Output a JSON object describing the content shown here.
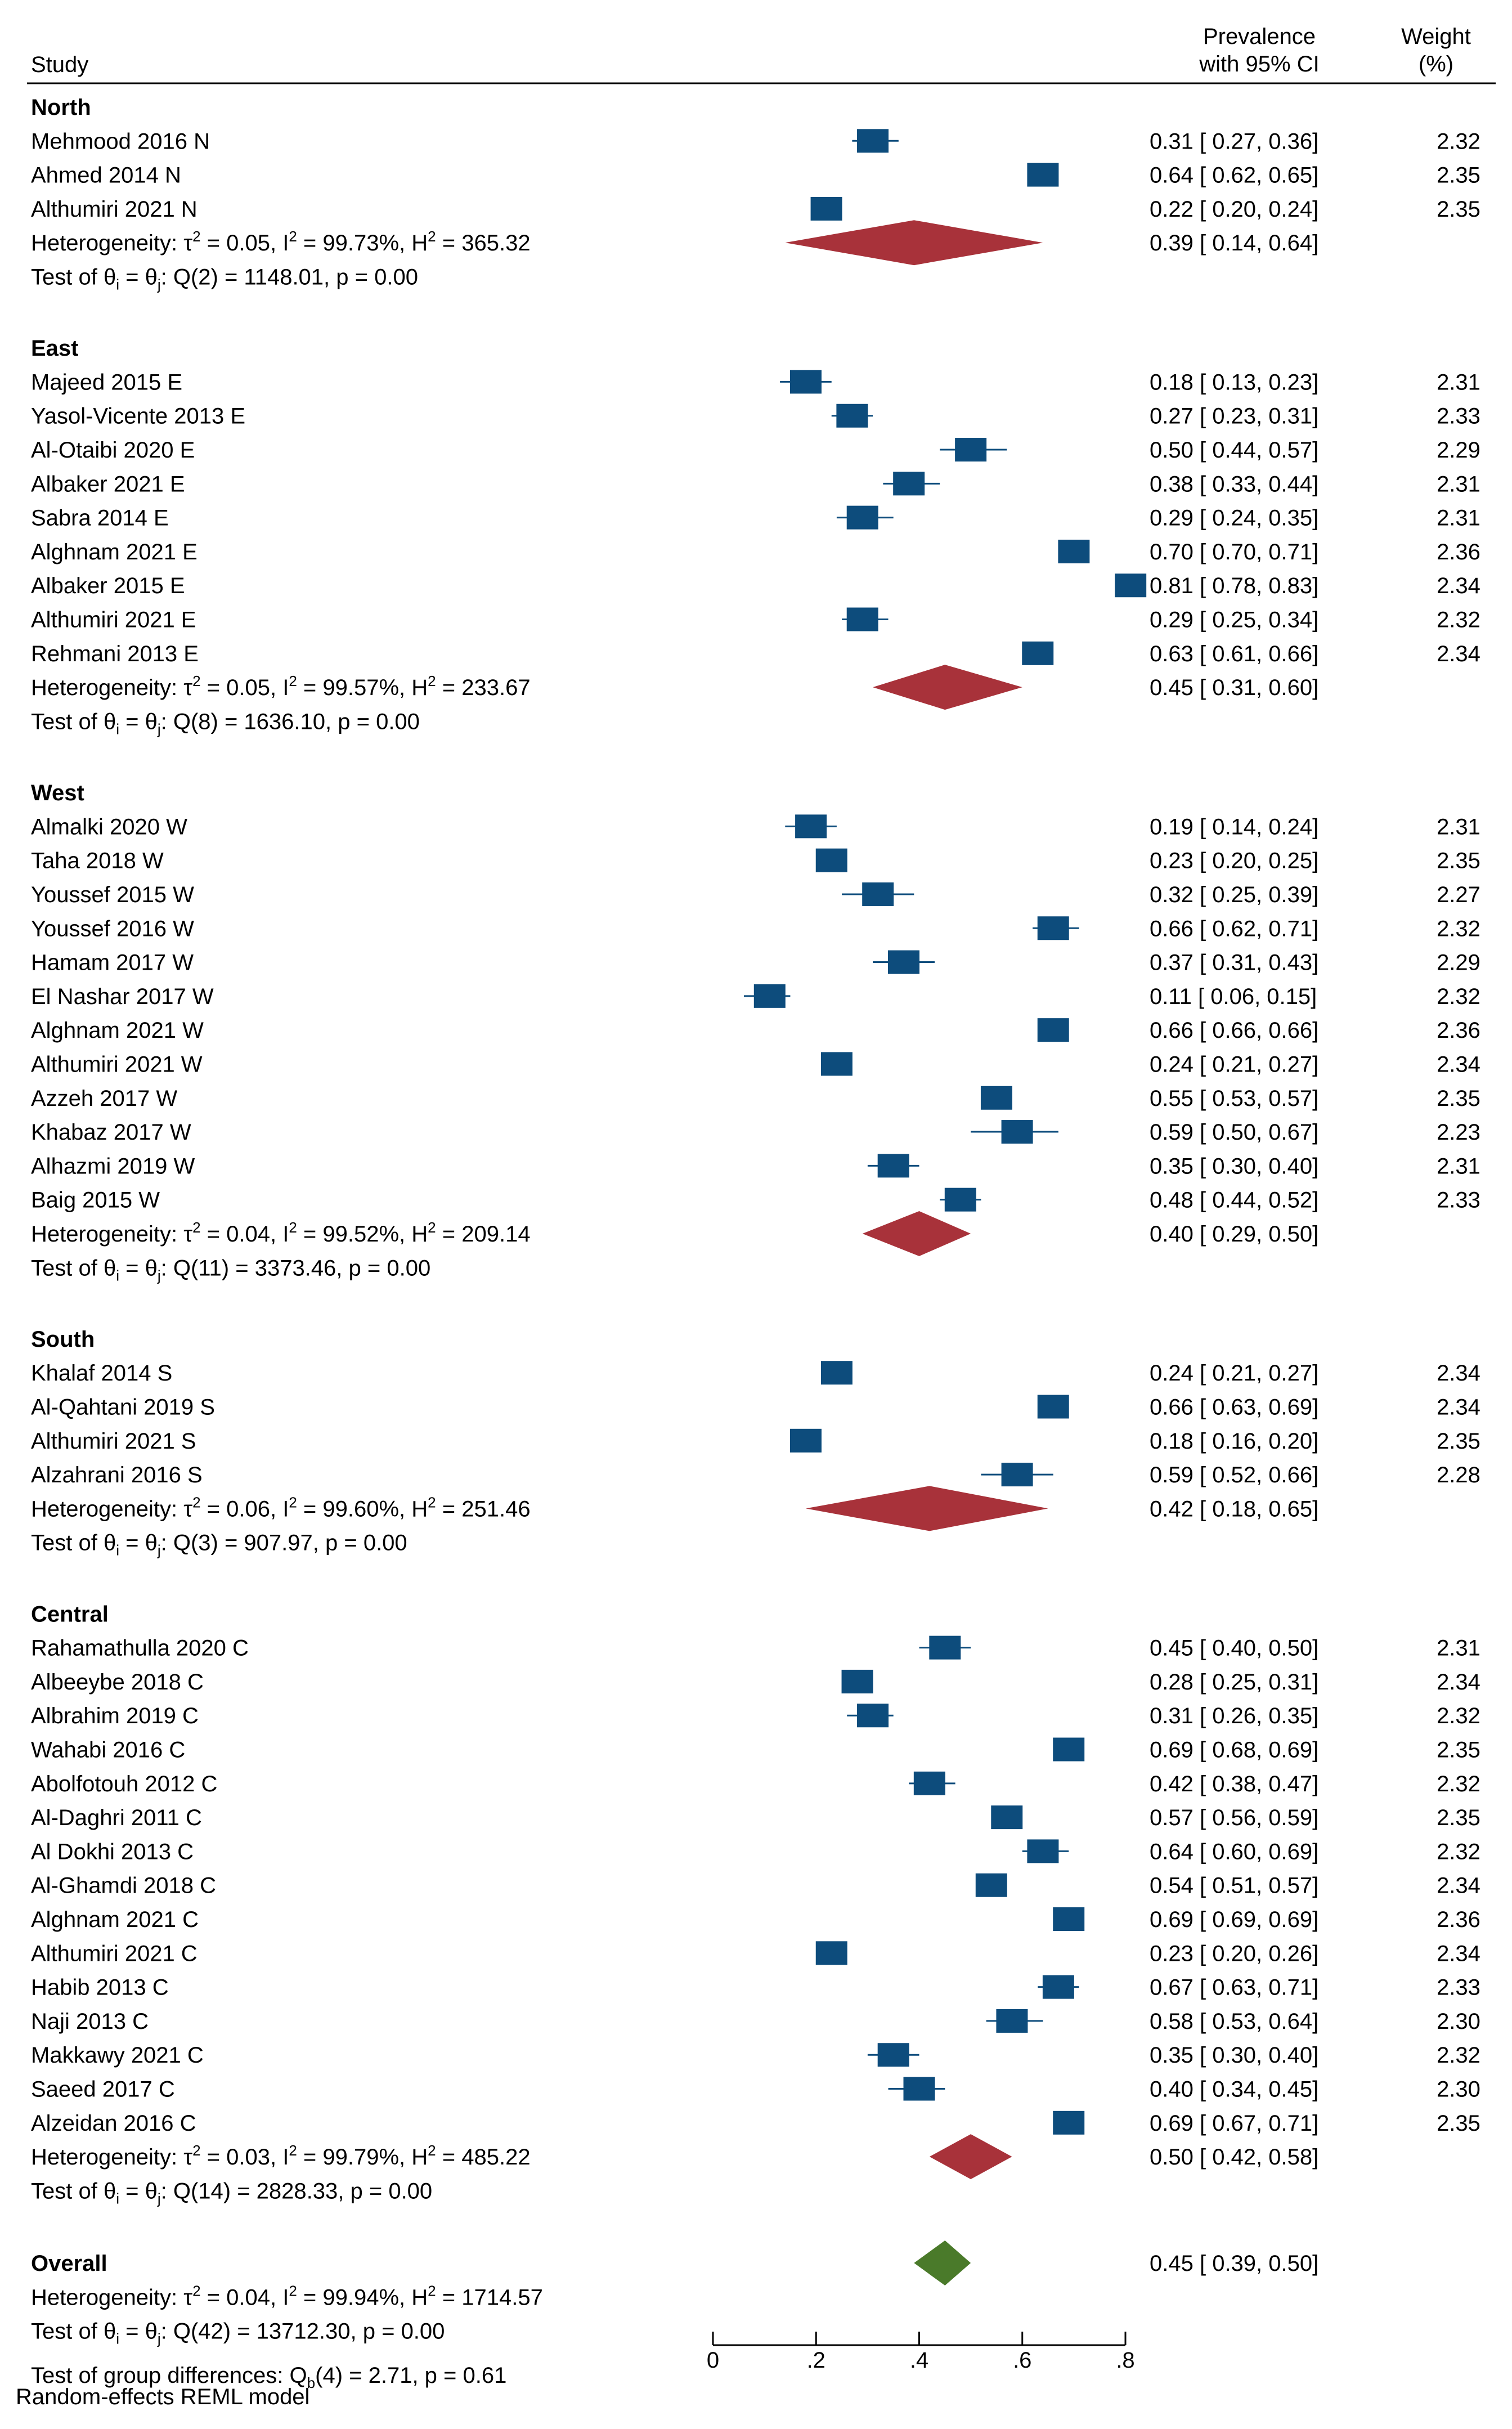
{
  "chart_data": {
    "type": "forest",
    "header": {
      "study": "Study",
      "prevalence_line1": "Prevalence",
      "prevalence_line2": "with 95% CI",
      "weight_line1": "Weight",
      "weight_line2": "(%)"
    },
    "xaxis": {
      "range": [
        0,
        0.8
      ],
      "ticks": [
        0,
        0.2,
        0.4,
        0.6,
        0.8
      ],
      "tick_labels": [
        "0",
        ".2",
        ".4",
        ".6",
        ".8"
      ]
    },
    "colors": {
      "study_box": "#0d4c7c",
      "subgroup_diamond": "#a8323a",
      "overall_diamond": "#4a7a2a"
    },
    "groups": [
      {
        "name": "North",
        "studies": [
          {
            "label": "Mehmood 2016 N",
            "est": 0.31,
            "lo": 0.27,
            "hi": 0.36,
            "ci_text": "0.31 [ 0.27,  0.36]",
            "weight": "2.32"
          },
          {
            "label": "Ahmed 2014 N",
            "est": 0.64,
            "lo": 0.62,
            "hi": 0.65,
            "ci_text": "0.64 [ 0.62,  0.65]",
            "weight": "2.35"
          },
          {
            "label": "Althumiri 2021 N",
            "est": 0.22,
            "lo": 0.2,
            "hi": 0.24,
            "ci_text": "0.22 [ 0.20,  0.24]",
            "weight": "2.35"
          }
        ],
        "pooled": {
          "est": 0.39,
          "lo": 0.14,
          "hi": 0.64,
          "ci_text": "0.39 [ 0.14,  0.64]"
        },
        "heterogeneity": {
          "tau2": "0.05",
          "i2": "99.73%",
          "h2": "365.32"
        },
        "test": {
          "q_df": "2",
          "q": "1148.01",
          "p": "0.00"
        }
      },
      {
        "name": "East",
        "studies": [
          {
            "label": "Majeed 2015 E",
            "est": 0.18,
            "lo": 0.13,
            "hi": 0.23,
            "ci_text": "0.18 [ 0.13,  0.23]",
            "weight": "2.31"
          },
          {
            "label": "Yasol-Vicente 2013 E",
            "est": 0.27,
            "lo": 0.23,
            "hi": 0.31,
            "ci_text": "0.27 [ 0.23,  0.31]",
            "weight": "2.33"
          },
          {
            "label": "Al-Otaibi 2020 E",
            "est": 0.5,
            "lo": 0.44,
            "hi": 0.57,
            "ci_text": "0.50 [ 0.44,  0.57]",
            "weight": "2.29"
          },
          {
            "label": "Albaker 2021 E",
            "est": 0.38,
            "lo": 0.33,
            "hi": 0.44,
            "ci_text": "0.38 [ 0.33,  0.44]",
            "weight": "2.31"
          },
          {
            "label": "Sabra 2014 E",
            "est": 0.29,
            "lo": 0.24,
            "hi": 0.35,
            "ci_text": "0.29 [ 0.24,  0.35]",
            "weight": "2.31"
          },
          {
            "label": "Alghnam 2021 E",
            "est": 0.7,
            "lo": 0.7,
            "hi": 0.71,
            "ci_text": "0.70 [ 0.70,  0.71]",
            "weight": "2.36"
          },
          {
            "label": "Albaker 2015 E",
            "est": 0.81,
            "lo": 0.78,
            "hi": 0.83,
            "ci_text": "0.81 [ 0.78,  0.83]",
            "weight": "2.34"
          },
          {
            "label": "Althumiri 2021 E",
            "est": 0.29,
            "lo": 0.25,
            "hi": 0.34,
            "ci_text": "0.29 [ 0.25,  0.34]",
            "weight": "2.32"
          },
          {
            "label": "Rehmani 2013 E",
            "est": 0.63,
            "lo": 0.61,
            "hi": 0.66,
            "ci_text": "0.63 [ 0.61,  0.66]",
            "weight": "2.34"
          }
        ],
        "pooled": {
          "est": 0.45,
          "lo": 0.31,
          "hi": 0.6,
          "ci_text": "0.45 [ 0.31,  0.60]"
        },
        "heterogeneity": {
          "tau2": "0.05",
          "i2": "99.57%",
          "h2": "233.67"
        },
        "test": {
          "q_df": "8",
          "q": "1636.10",
          "p": "0.00"
        }
      },
      {
        "name": "West",
        "studies": [
          {
            "label": "Almalki 2020 W",
            "est": 0.19,
            "lo": 0.14,
            "hi": 0.24,
            "ci_text": "0.19 [ 0.14,  0.24]",
            "weight": "2.31"
          },
          {
            "label": "Taha 2018 W",
            "est": 0.23,
            "lo": 0.2,
            "hi": 0.25,
            "ci_text": "0.23 [ 0.20,  0.25]",
            "weight": "2.35"
          },
          {
            "label": "Youssef 2015 W",
            "est": 0.32,
            "lo": 0.25,
            "hi": 0.39,
            "ci_text": "0.32 [ 0.25,  0.39]",
            "weight": "2.27"
          },
          {
            "label": "Youssef 2016 W",
            "est": 0.66,
            "lo": 0.62,
            "hi": 0.71,
            "ci_text": "0.66 [ 0.62,  0.71]",
            "weight": "2.32"
          },
          {
            "label": "Hamam 2017 W",
            "est": 0.37,
            "lo": 0.31,
            "hi": 0.43,
            "ci_text": "0.37 [ 0.31,  0.43]",
            "weight": "2.29"
          },
          {
            "label": "El Nashar 2017 W",
            "est": 0.11,
            "lo": 0.06,
            "hi": 0.15,
            "ci_text": "0.11 [ 0.06,  0.15]",
            "weight": "2.32"
          },
          {
            "label": "Alghnam 2021 W",
            "est": 0.66,
            "lo": 0.66,
            "hi": 0.66,
            "ci_text": "0.66 [ 0.66,  0.66]",
            "weight": "2.36"
          },
          {
            "label": "Althumiri 2021 W",
            "est": 0.24,
            "lo": 0.21,
            "hi": 0.27,
            "ci_text": "0.24 [ 0.21,  0.27]",
            "weight": "2.34"
          },
          {
            "label": "Azzeh 2017 W",
            "est": 0.55,
            "lo": 0.53,
            "hi": 0.57,
            "ci_text": "0.55 [ 0.53,  0.57]",
            "weight": "2.35"
          },
          {
            "label": "Khabaz 2017 W",
            "est": 0.59,
            "lo": 0.5,
            "hi": 0.67,
            "ci_text": "0.59 [ 0.50,  0.67]",
            "weight": "2.23"
          },
          {
            "label": "Alhazmi 2019 W",
            "est": 0.35,
            "lo": 0.3,
            "hi": 0.4,
            "ci_text": "0.35 [ 0.30,  0.40]",
            "weight": "2.31"
          },
          {
            "label": "Baig 2015 W",
            "est": 0.48,
            "lo": 0.44,
            "hi": 0.52,
            "ci_text": "0.48 [ 0.44,  0.52]",
            "weight": "2.33"
          }
        ],
        "pooled": {
          "est": 0.4,
          "lo": 0.29,
          "hi": 0.5,
          "ci_text": "0.40 [ 0.29,  0.50]"
        },
        "heterogeneity": {
          "tau2": "0.04",
          "i2": "99.52%",
          "h2": "209.14"
        },
        "test": {
          "q_df": "11",
          "q": "3373.46",
          "p": "0.00"
        }
      },
      {
        "name": "South",
        "studies": [
          {
            "label": "Khalaf 2014 S",
            "est": 0.24,
            "lo": 0.21,
            "hi": 0.27,
            "ci_text": "0.24 [ 0.21,  0.27]",
            "weight": "2.34"
          },
          {
            "label": "Al-Qahtani 2019 S",
            "est": 0.66,
            "lo": 0.63,
            "hi": 0.69,
            "ci_text": "0.66 [ 0.63,  0.69]",
            "weight": "2.34"
          },
          {
            "label": "Althumiri 2021 S",
            "est": 0.18,
            "lo": 0.16,
            "hi": 0.2,
            "ci_text": "0.18 [ 0.16,  0.20]",
            "weight": "2.35"
          },
          {
            "label": "Alzahrani 2016 S",
            "est": 0.59,
            "lo": 0.52,
            "hi": 0.66,
            "ci_text": "0.59 [ 0.52,  0.66]",
            "weight": "2.28"
          }
        ],
        "pooled": {
          "est": 0.42,
          "lo": 0.18,
          "hi": 0.65,
          "ci_text": "0.42 [ 0.18,  0.65]"
        },
        "heterogeneity": {
          "tau2": "0.06",
          "i2": "99.60%",
          "h2": "251.46"
        },
        "test": {
          "q_df": "3",
          "q": "907.97",
          "p": "0.00"
        }
      },
      {
        "name": "Central",
        "studies": [
          {
            "label": "Rahamathulla 2020 C",
            "est": 0.45,
            "lo": 0.4,
            "hi": 0.5,
            "ci_text": "0.45 [ 0.40,  0.50]",
            "weight": "2.31"
          },
          {
            "label": "Albeeybe 2018 C",
            "est": 0.28,
            "lo": 0.25,
            "hi": 0.31,
            "ci_text": "0.28 [ 0.25,  0.31]",
            "weight": "2.34"
          },
          {
            "label": "Albrahim 2019 C",
            "est": 0.31,
            "lo": 0.26,
            "hi": 0.35,
            "ci_text": "0.31 [ 0.26,  0.35]",
            "weight": "2.32"
          },
          {
            "label": "Wahabi 2016 C",
            "est": 0.69,
            "lo": 0.68,
            "hi": 0.69,
            "ci_text": "0.69 [ 0.68,  0.69]",
            "weight": "2.35"
          },
          {
            "label": "Abolfotouh 2012 C",
            "est": 0.42,
            "lo": 0.38,
            "hi": 0.47,
            "ci_text": "0.42 [ 0.38,  0.47]",
            "weight": "2.32"
          },
          {
            "label": "Al-Daghri 2011 C",
            "est": 0.57,
            "lo": 0.56,
            "hi": 0.59,
            "ci_text": "0.57 [ 0.56,  0.59]",
            "weight": "2.35"
          },
          {
            "label": "Al Dokhi 2013 C",
            "est": 0.64,
            "lo": 0.6,
            "hi": 0.69,
            "ci_text": "0.64 [ 0.60,  0.69]",
            "weight": "2.32"
          },
          {
            "label": "Al-Ghamdi 2018 C",
            "est": 0.54,
            "lo": 0.51,
            "hi": 0.57,
            "ci_text": "0.54 [ 0.51,  0.57]",
            "weight": "2.34"
          },
          {
            "label": "Alghnam 2021 C",
            "est": 0.69,
            "lo": 0.69,
            "hi": 0.69,
            "ci_text": "0.69 [ 0.69,  0.69]",
            "weight": "2.36"
          },
          {
            "label": "Althumiri 2021 C",
            "est": 0.23,
            "lo": 0.2,
            "hi": 0.26,
            "ci_text": "0.23 [ 0.20,  0.26]",
            "weight": "2.34"
          },
          {
            "label": "Habib 2013 C",
            "est": 0.67,
            "lo": 0.63,
            "hi": 0.71,
            "ci_text": "0.67 [ 0.63,  0.71]",
            "weight": "2.33"
          },
          {
            "label": "Naji 2013 C",
            "est": 0.58,
            "lo": 0.53,
            "hi": 0.64,
            "ci_text": "0.58 [ 0.53,  0.64]",
            "weight": "2.30"
          },
          {
            "label": "Makkawy 2021 C",
            "est": 0.35,
            "lo": 0.3,
            "hi": 0.4,
            "ci_text": "0.35 [ 0.30,  0.40]",
            "weight": "2.32"
          },
          {
            "label": "Saeed 2017 C",
            "est": 0.4,
            "lo": 0.34,
            "hi": 0.45,
            "ci_text": "0.40 [ 0.34,  0.45]",
            "weight": "2.30"
          },
          {
            "label": "Alzeidan 2016 C",
            "est": 0.69,
            "lo": 0.67,
            "hi": 0.71,
            "ci_text": "0.69 [ 0.67,  0.71]",
            "weight": "2.35"
          }
        ],
        "pooled": {
          "est": 0.5,
          "lo": 0.42,
          "hi": 0.58,
          "ci_text": "0.50 [ 0.42,  0.58]"
        },
        "heterogeneity": {
          "tau2": "0.03",
          "i2": "99.79%",
          "h2": "485.22"
        },
        "test": {
          "q_df": "14",
          "q": "2828.33",
          "p": "0.00"
        }
      }
    ],
    "overall": {
      "name": "Overall",
      "est": 0.45,
      "lo": 0.39,
      "hi": 0.5,
      "ci_text": "0.45 [ 0.39,  0.50]",
      "heterogeneity": {
        "tau2": "0.04",
        "i2": "99.94%",
        "h2": "1714.57"
      },
      "test": {
        "q_df": "42",
        "q": "13712.30",
        "p": "0.00"
      }
    },
    "group_differences": {
      "df": "4",
      "q": "2.71",
      "p": "0.61"
    },
    "footer": "Random-effects REML model"
  }
}
